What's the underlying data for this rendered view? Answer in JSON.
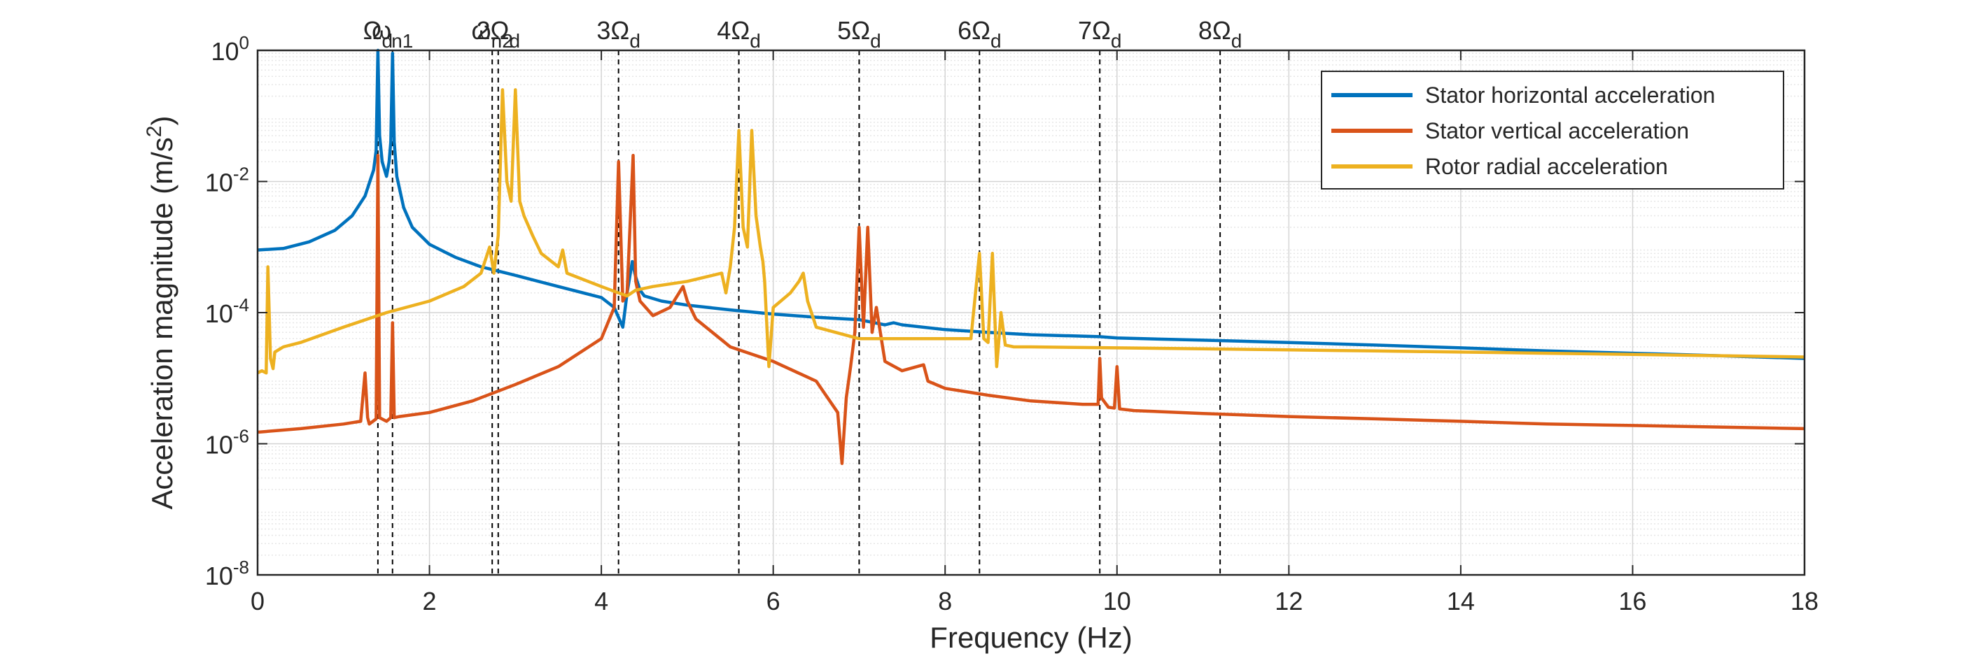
{
  "chart_data": {
    "type": "line",
    "xlabel": "Frequency (Hz)",
    "ylabel": "Acceleration magnitude (m/s^2)",
    "xlim": [
      0,
      18
    ],
    "ylim": [
      1e-08,
      1
    ],
    "yscale": "log",
    "grid": true,
    "legend_position": "top-right",
    "x_ticks": [
      0,
      2,
      4,
      6,
      8,
      10,
      12,
      14,
      16,
      18
    ],
    "y_ticks": [
      {
        "value": 1e-08,
        "base": "10",
        "exp": "-8"
      },
      {
        "value": 1e-06,
        "base": "10",
        "exp": "-6"
      },
      {
        "value": 0.0001,
        "base": "10",
        "exp": "-4"
      },
      {
        "value": 0.01,
        "base": "10",
        "exp": "-2"
      },
      {
        "value": 1,
        "base": "10",
        "exp": "0"
      }
    ],
    "reference_lines": [
      {
        "x": 1.4,
        "label": "Ω",
        "sub": "d"
      },
      {
        "x": 1.57,
        "label": "ω",
        "sub": "n1"
      },
      {
        "x": 2.73,
        "label": "ω",
        "sub": "n2"
      },
      {
        "x": 2.8,
        "label": "2Ω",
        "sub": "d"
      },
      {
        "x": 4.2,
        "label": "3Ω",
        "sub": "d"
      },
      {
        "x": 5.6,
        "label": "4Ω",
        "sub": "d"
      },
      {
        "x": 7.0,
        "label": "5Ω",
        "sub": "d"
      },
      {
        "x": 8.4,
        "label": "6Ω",
        "sub": "d"
      },
      {
        "x": 9.8,
        "label": "7Ω",
        "sub": "d"
      },
      {
        "x": 11.2,
        "label": "8Ω",
        "sub": "d"
      }
    ],
    "series": [
      {
        "name": "Stator horizontal acceleration",
        "color": "#0072BD",
        "x": [
          0.0,
          0.3,
          0.6,
          0.9,
          1.1,
          1.25,
          1.35,
          1.38,
          1.4,
          1.42,
          1.45,
          1.5,
          1.53,
          1.55,
          1.57,
          1.59,
          1.62,
          1.7,
          1.8,
          2.0,
          2.3,
          2.6,
          3.0,
          3.5,
          4.0,
          4.15,
          4.25,
          4.3,
          4.36,
          4.4,
          4.45,
          4.5,
          4.7,
          5.0,
          5.5,
          6.0,
          6.5,
          7.0,
          7.3,
          7.4,
          7.5,
          8.0,
          8.5,
          9.0,
          9.8,
          10.0,
          11.0,
          12.0,
          13.0,
          14.0,
          15.0,
          16.0,
          17.0,
          18.0
        ],
        "values": [
          0.0009,
          0.00095,
          0.0012,
          0.0018,
          0.003,
          0.006,
          0.015,
          0.03,
          1.0,
          0.05,
          0.02,
          0.012,
          0.02,
          0.04,
          0.9,
          0.04,
          0.012,
          0.004,
          0.002,
          0.0011,
          0.0007,
          0.0005,
          0.00037,
          0.00025,
          0.00017,
          0.00012,
          6e-05,
          0.0002,
          0.0006,
          0.00035,
          0.00022,
          0.00018,
          0.00015,
          0.00013,
          0.00011,
          9.5e-05,
          8.5e-05,
          7.8e-05,
          6.5e-05,
          7e-05,
          6.5e-05,
          5.5e-05,
          5e-05,
          4.6e-05,
          4.3e-05,
          4.1e-05,
          3.8e-05,
          3.5e-05,
          3.2e-05,
          2.9e-05,
          2.6e-05,
          2.4e-05,
          2.2e-05,
          2e-05
        ]
      },
      {
        "name": "Stator vertical acceleration",
        "color": "#D95319",
        "x": [
          0.0,
          0.5,
          1.0,
          1.2,
          1.25,
          1.28,
          1.3,
          1.38,
          1.4,
          1.42,
          1.5,
          1.55,
          1.57,
          1.59,
          1.65,
          2.0,
          2.5,
          3.0,
          3.5,
          4.0,
          4.15,
          4.2,
          4.25,
          4.3,
          4.37,
          4.4,
          4.45,
          4.6,
          4.8,
          4.95,
          5.0,
          5.1,
          5.5,
          6.0,
          6.5,
          6.75,
          6.8,
          6.85,
          6.9,
          6.95,
          7.0,
          7.05,
          7.1,
          7.15,
          7.2,
          7.3,
          7.5,
          7.75,
          7.8,
          8.0,
          8.5,
          9.0,
          9.6,
          9.78,
          9.8,
          9.82,
          9.9,
          9.97,
          10.0,
          10.03,
          10.2,
          11.0,
          12.0,
          13.0,
          14.0,
          15.0,
          16.0,
          17.0,
          18.0
        ],
        "values": [
          1.5e-06,
          1.7e-06,
          2e-06,
          2.2e-06,
          1.2e-05,
          2.5e-06,
          2e-06,
          2.4e-06,
          0.025,
          2.5e-06,
          2.2e-06,
          2.5e-06,
          7e-05,
          2.5e-06,
          2.6e-06,
          3e-06,
          4.5e-06,
          8e-06,
          1.5e-05,
          4e-05,
          0.00012,
          0.02,
          0.00015,
          0.0002,
          0.025,
          0.0003,
          0.00015,
          9e-05,
          0.00012,
          0.00025,
          0.00015,
          8e-05,
          3e-05,
          1.8e-05,
          9e-06,
          3e-06,
          5e-07,
          5e-06,
          1.5e-05,
          5e-05,
          0.002,
          6e-05,
          0.002,
          5e-05,
          0.00012,
          1.8e-05,
          1.3e-05,
          1.6e-05,
          9e-06,
          7e-06,
          5.5e-06,
          4.5e-06,
          4e-06,
          4e-06,
          2e-05,
          5e-06,
          3.6e-06,
          3.5e-06,
          1.5e-05,
          3.4e-06,
          3.2e-06,
          2.9e-06,
          2.6e-06,
          2.4e-06,
          2.2e-06,
          2e-06,
          1.9e-06,
          1.8e-06,
          1.7e-06
        ]
      },
      {
        "name": "Rotor radial acceleration",
        "color": "#EDB120",
        "x": [
          0.0,
          0.05,
          0.1,
          0.12,
          0.15,
          0.18,
          0.2,
          0.3,
          0.5,
          1.0,
          1.5,
          2.0,
          2.4,
          2.6,
          2.7,
          2.75,
          2.8,
          2.85,
          2.9,
          2.95,
          3.0,
          3.05,
          3.1,
          3.2,
          3.3,
          3.5,
          3.55,
          3.6,
          4.0,
          4.2,
          4.3,
          4.4,
          4.6,
          5.0,
          5.4,
          5.45,
          5.5,
          5.55,
          5.6,
          5.65,
          5.7,
          5.75,
          5.8,
          5.85,
          5.88,
          5.9,
          5.95,
          6.0,
          6.2,
          6.3,
          6.35,
          6.4,
          6.5,
          7.0,
          7.5,
          8.0,
          8.3,
          8.4,
          8.45,
          8.5,
          8.55,
          8.6,
          8.62,
          8.65,
          8.7,
          8.8,
          9.0,
          10.0,
          11.0,
          12.0,
          13.0,
          14.0,
          15.0,
          16.0,
          17.0,
          18.0
        ],
        "values": [
          1.2e-05,
          1.3e-05,
          1.2e-05,
          0.0005,
          2e-05,
          1.4e-05,
          2.5e-05,
          3e-05,
          3.5e-05,
          6e-05,
          0.0001,
          0.00015,
          0.00025,
          0.0004,
          0.001,
          0.0004,
          0.0015,
          0.25,
          0.01,
          0.005,
          0.25,
          0.005,
          0.003,
          0.0015,
          0.0008,
          0.0005,
          0.0009,
          0.0004,
          0.00025,
          0.0002,
          0.00018,
          0.00022,
          0.00025,
          0.0003,
          0.0004,
          0.0002,
          0.0005,
          0.002,
          0.06,
          0.002,
          0.001,
          0.06,
          0.003,
          0.001,
          0.0006,
          0.0003,
          1.5e-05,
          0.00012,
          0.0002,
          0.0003,
          0.0004,
          0.00015,
          6e-05,
          4e-05,
          4e-05,
          4e-05,
          4e-05,
          0.0008,
          4e-05,
          3.5e-05,
          0.0008,
          1.5e-05,
          3e-05,
          0.0001,
          3.2e-05,
          3e-05,
          3e-05,
          2.9e-05,
          2.8e-05,
          2.7e-05,
          2.6e-05,
          2.5e-05,
          2.4e-05,
          2.3e-05,
          2.2e-05,
          2.1e-05
        ]
      }
    ]
  }
}
